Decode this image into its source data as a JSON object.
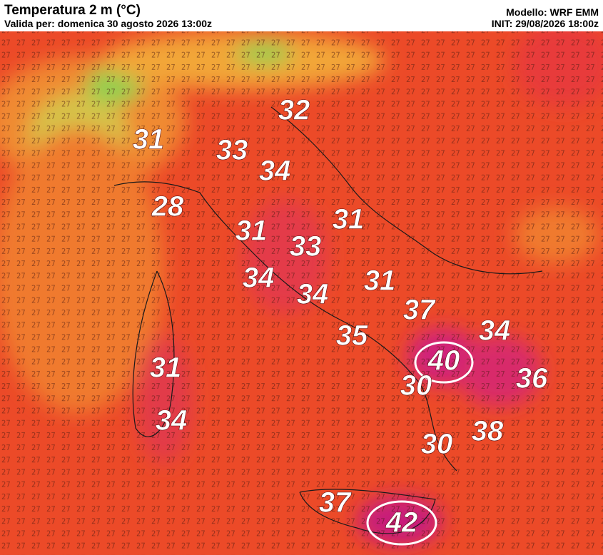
{
  "header": {
    "title": "Temperatura 2 m (°C)",
    "valid": "Valida per: domenica 30 agosto 2026 13:00z",
    "model": "Modello: WRF EMM",
    "init": "INIT: 29/08/2026 18:00z"
  },
  "labels": [
    32,
    31,
    33,
    34,
    28,
    31,
    31,
    33,
    34,
    31,
    34,
    37,
    35,
    34,
    40,
    36,
    31,
    30,
    34,
    38,
    30,
    37,
    42
  ]
}
